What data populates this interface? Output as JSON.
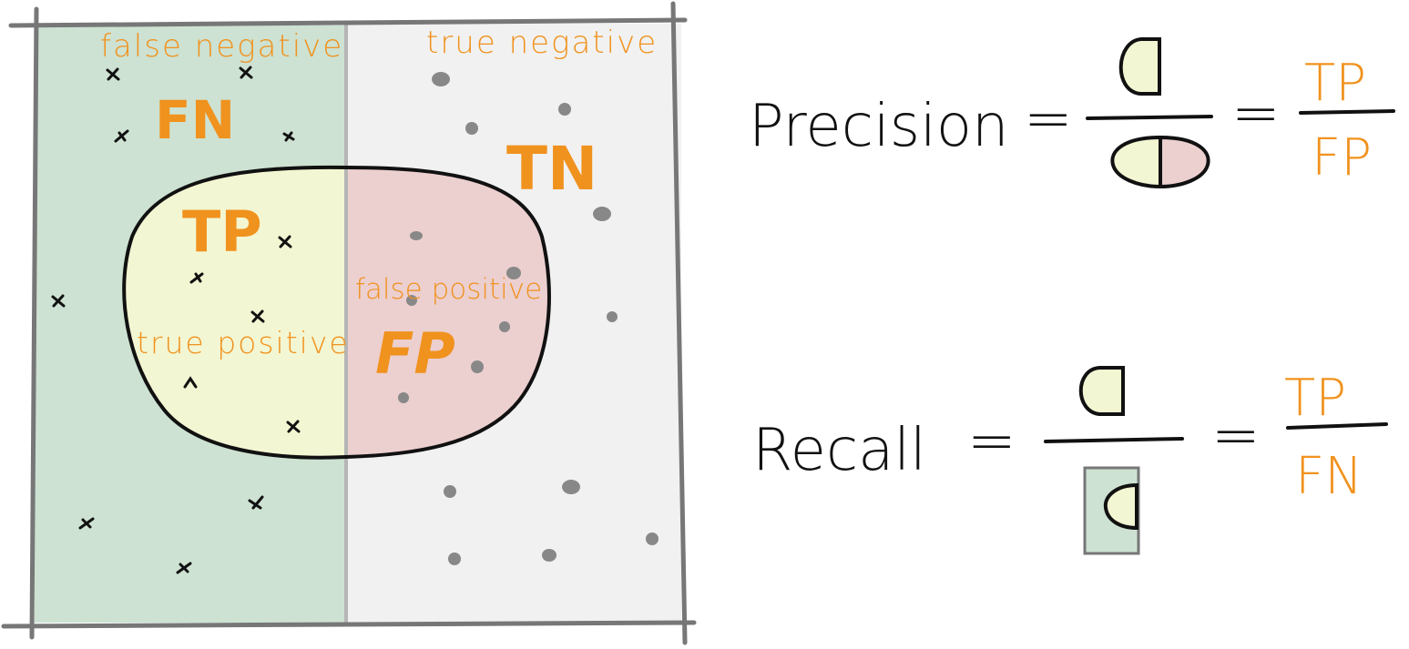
{
  "colors": {
    "orange": "#f0921e",
    "ink": "#111111",
    "relevant_bg": "#cde2d2",
    "irrelevant_bg": "#f1f1f1",
    "tp_fill": "#f3f6d2",
    "fp_fill": "#eccfcf",
    "frame": "#777777",
    "dot": "#888888"
  },
  "regions": {
    "false_negative_label": "false negative",
    "true_negative_label": "true negative",
    "true_positive_label": "true positive",
    "false_positive_label": "false positive",
    "fn_abbr": "FN",
    "tn_abbr": "TN",
    "tp_abbr": "TP",
    "fp_abbr": "FP"
  },
  "precision": {
    "term": "Precision",
    "equals_1": "=",
    "equals_2": "=",
    "numerator": "TP",
    "denominator": "FP"
  },
  "recall": {
    "term": "Recall",
    "equals_1": "=",
    "equals_2": "=",
    "numerator": "TP",
    "denominator": "FN"
  },
  "icons": [
    "cross-marker-icon",
    "dot-marker-icon",
    "half-ellipse-icon"
  ]
}
